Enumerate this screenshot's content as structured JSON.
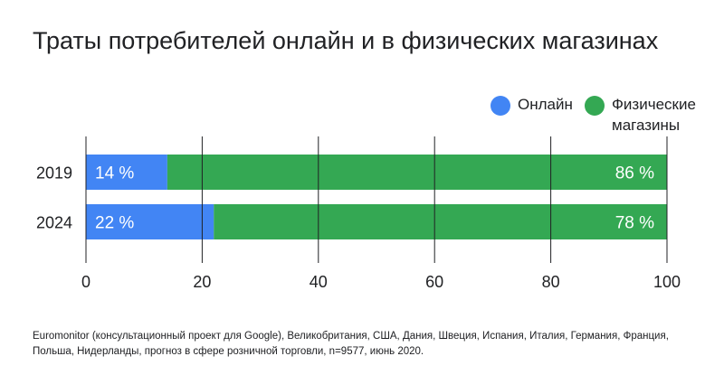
{
  "chart_data": {
    "type": "bar",
    "orientation": "horizontal",
    "stacked": true,
    "title": "Траты потребителей онлайн и в физических магазинах",
    "categories": [
      "2019",
      "2024"
    ],
    "series": [
      {
        "name": "Онлайн",
        "values": [
          14,
          22
        ],
        "labels": [
          "14 %",
          "22 %"
        ],
        "color": "#4285f4"
      },
      {
        "name": "Физические магазины",
        "values": [
          86,
          78
        ],
        "labels": [
          "86 %",
          "78 %"
        ],
        "color": "#34a853"
      }
    ],
    "xlim": [
      0,
      100
    ],
    "xticks": [
      0,
      20,
      40,
      60,
      80,
      100
    ],
    "grid": true,
    "legend": "top-right"
  },
  "legend": {
    "items": [
      {
        "label": "Онлайн",
        "color": "#4285f4"
      },
      {
        "label": "Физические магазины",
        "color": "#34a853"
      }
    ]
  },
  "source": "Euromonitor (консультационный проект для Google), Великобритания, США, Дания, Швеция, Испания, Италия, Германия, Франция, Польша, Нидерланды, прогноз в сфере розничной торговли, n=9577, июнь 2020."
}
